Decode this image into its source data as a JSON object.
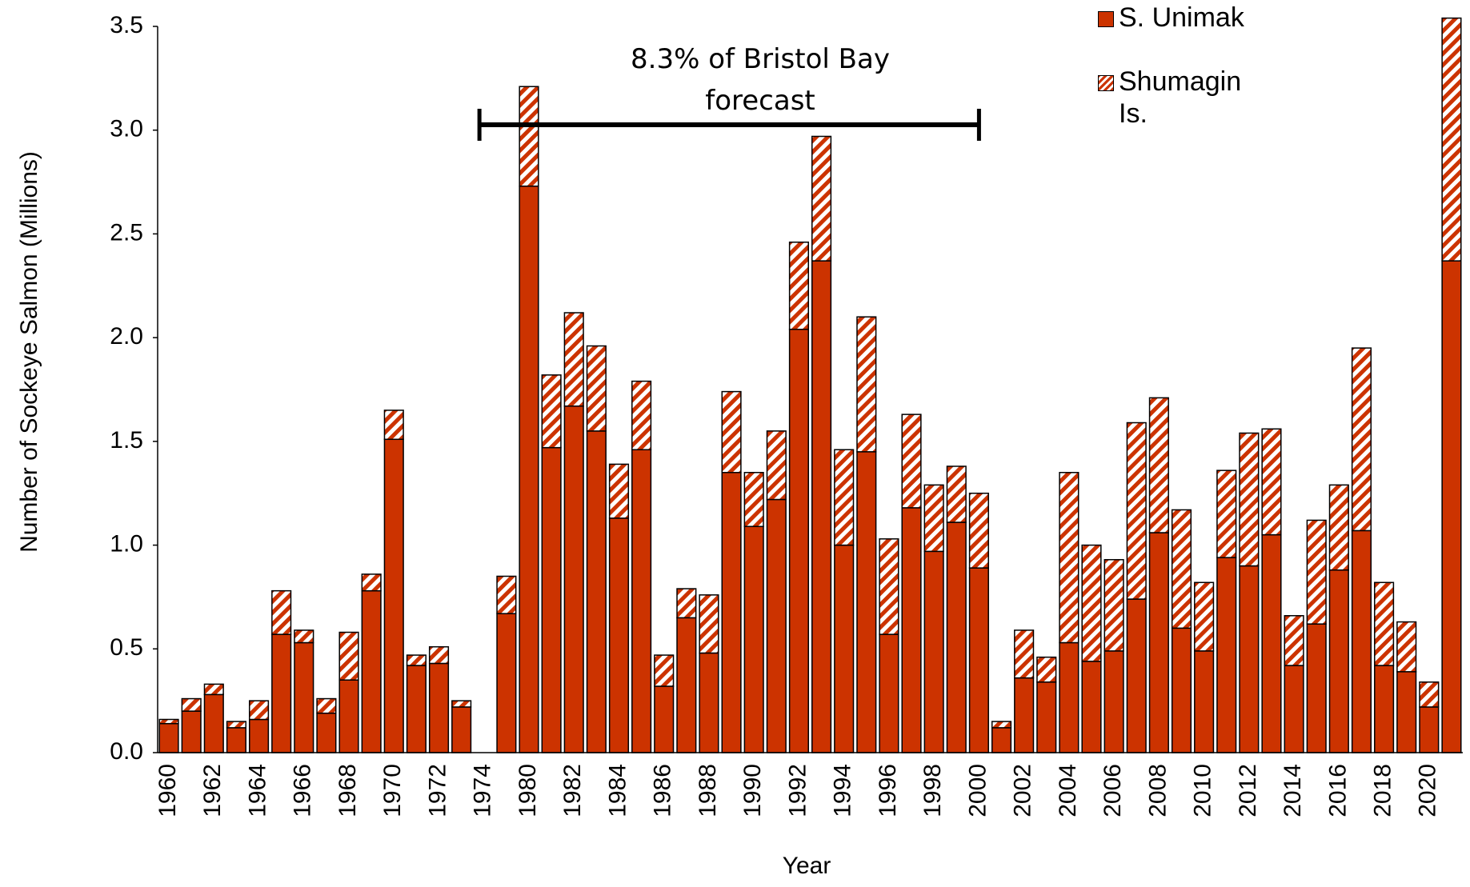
{
  "chart_data": {
    "type": "stacked_bar",
    "x_label": "Year",
    "y_label": "Number of Sockeye Salmon (Millions)",
    "annotation": "8.3% of Bristol Bay forecast",
    "categories": [
      "1960",
      null,
      "1962",
      null,
      "1964",
      null,
      "1966",
      null,
      "1968",
      null,
      "1970",
      null,
      "1972",
      null,
      "1974",
      null,
      "1980",
      null,
      "1982",
      null,
      "1984",
      null,
      "1986",
      null,
      "1988",
      null,
      "1990",
      null,
      "1992",
      null,
      "1994",
      null,
      "1996",
      null,
      "1998",
      null,
      "2000",
      null,
      "2002",
      null,
      "2004",
      null,
      "2006",
      null,
      "2008",
      null,
      "2010",
      null,
      "2012",
      null,
      "2014",
      null,
      "2016",
      null,
      "2018",
      null,
      "2020",
      null
    ],
    "series": [
      {
        "name": "S. Unimak",
        "color": "#cc3300",
        "pattern": "solid",
        "values": [
          0.14,
          0.2,
          0.28,
          0.12,
          0.16,
          0.57,
          0.53,
          0.19,
          0.35,
          0.78,
          1.51,
          0.42,
          0.43,
          0.22,
          null,
          0.67,
          2.73,
          1.47,
          1.67,
          1.55,
          1.13,
          1.46,
          0.32,
          0.65,
          0.48,
          1.35,
          1.09,
          1.22,
          2.04,
          2.37,
          1.0,
          1.45,
          0.57,
          1.18,
          0.97,
          1.11,
          0.89,
          0.12,
          0.36,
          0.34,
          0.53,
          0.44,
          0.49,
          0.74,
          1.06,
          0.6,
          0.49,
          0.94,
          0.9,
          1.05,
          0.42,
          0.62,
          0.88,
          1.07,
          0.42,
          0.39,
          0.22,
          2.37
        ]
      },
      {
        "name": "Shumagin Is.",
        "color": "#cc3300",
        "pattern": "hatch",
        "values": [
          0.02,
          0.06,
          0.05,
          0.03,
          0.09,
          0.21,
          0.06,
          0.07,
          0.23,
          0.08,
          0.14,
          0.05,
          0.08,
          0.03,
          null,
          0.18,
          0.48,
          0.35,
          0.45,
          0.41,
          0.26,
          0.33,
          0.15,
          0.14,
          0.28,
          0.39,
          0.26,
          0.33,
          0.42,
          0.6,
          0.46,
          0.65,
          0.46,
          0.45,
          0.32,
          0.27,
          0.36,
          0.03,
          0.23,
          0.12,
          0.82,
          0.56,
          0.44,
          0.85,
          0.65,
          0.57,
          0.33,
          0.42,
          0.64,
          0.51,
          0.24,
          0.5,
          0.41,
          0.88,
          0.4,
          0.24,
          0.12,
          1.17
        ]
      }
    ],
    "ylim": [
      0,
      3.5
    ],
    "yticks": [
      {
        "value": 0,
        "label": "0.0"
      },
      {
        "value": 0.5,
        "label": "0.5"
      },
      {
        "value": 1,
        "label": "1.0"
      },
      {
        "value": 1.5,
        "label": "1.5"
      },
      {
        "value": 2,
        "label": "2.0"
      },
      {
        "value": 2.5,
        "label": "2.5"
      },
      {
        "value": 3,
        "label": "3.0"
      },
      {
        "value": 3.5,
        "label": "3.5"
      }
    ],
    "grid": false,
    "legend": "top-right"
  }
}
